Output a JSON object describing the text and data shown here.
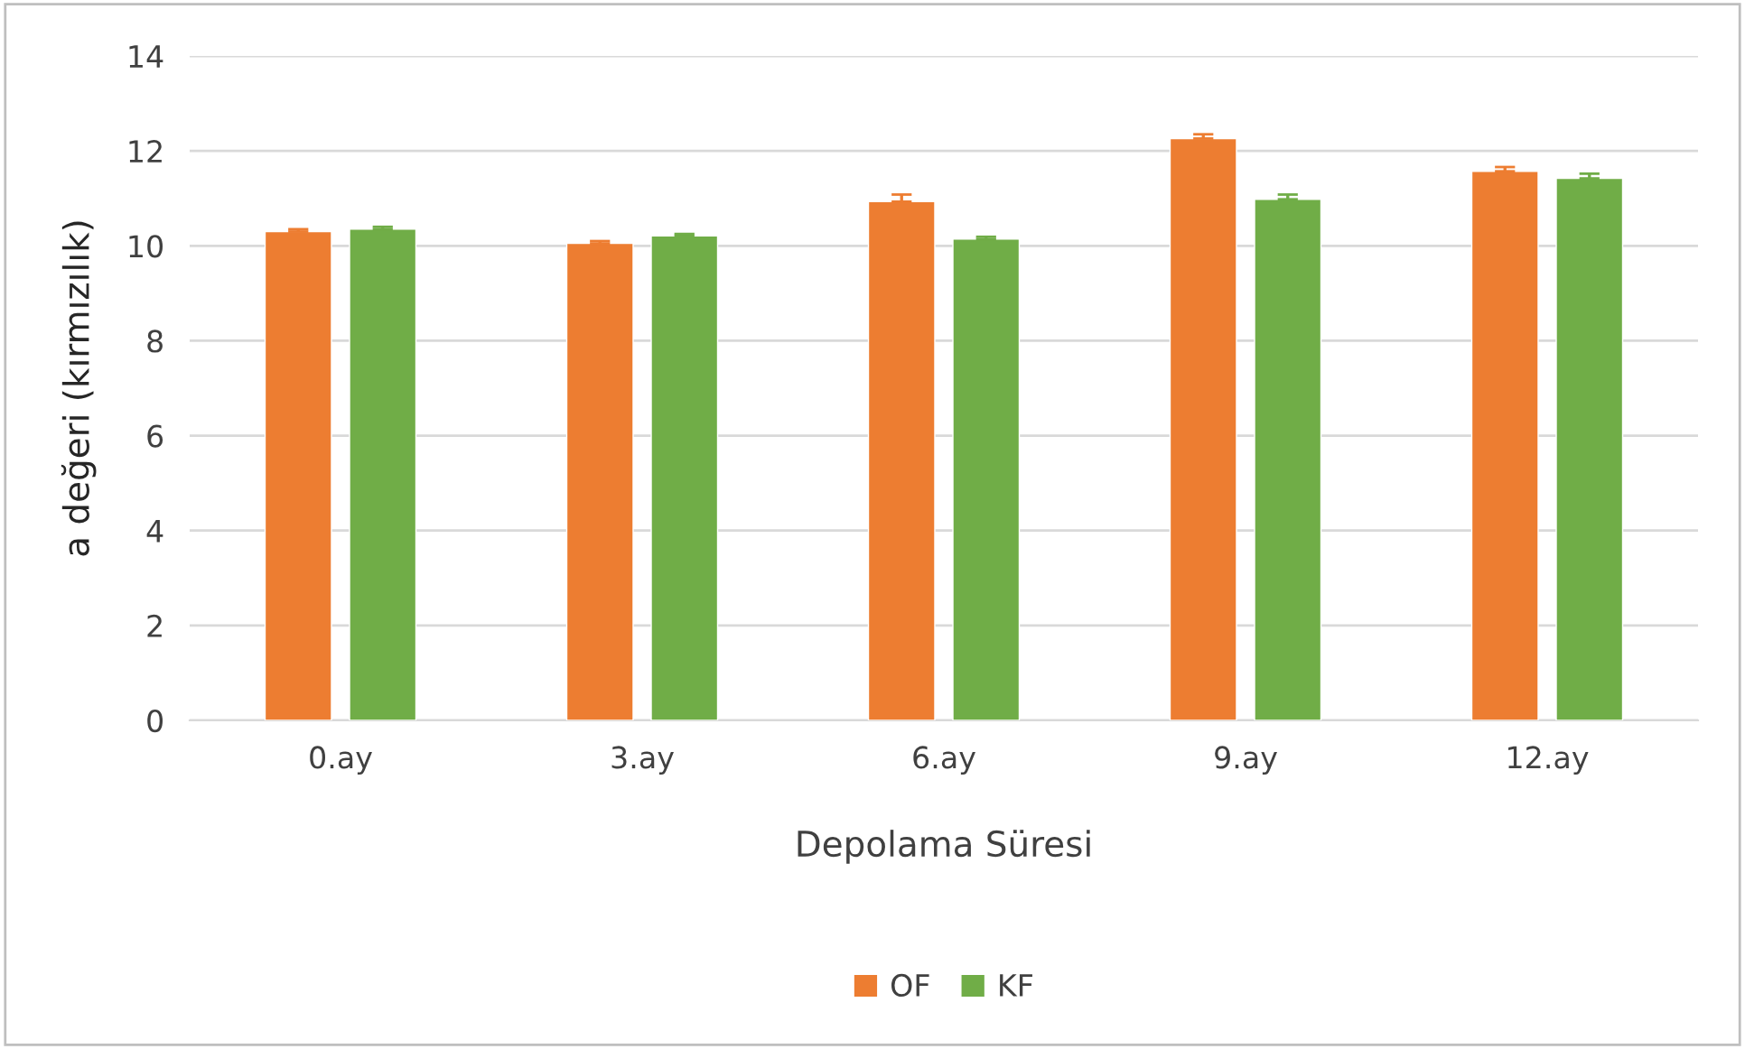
{
  "chart_data": {
    "type": "bar",
    "xlabel": "Depolama Süresi",
    "ylabel": "a değeri (kırmızılık)",
    "categories": [
      "0.ay",
      "3.ay",
      "6.ay",
      "9.ay",
      "12.ay"
    ],
    "series": [
      {
        "name": "OF",
        "color": "#ed7d31",
        "values": [
          10.3,
          10.05,
          10.93,
          12.26,
          11.57
        ],
        "errors": [
          [
            10.3,
            10.35
          ],
          [
            10.05,
            10.1
          ],
          [
            10.93,
            11.08
          ],
          [
            12.26,
            12.35
          ],
          [
            11.57,
            11.66
          ]
        ]
      },
      {
        "name": "KF",
        "color": "#70ad47",
        "values": [
          10.35,
          10.21,
          10.14,
          10.98,
          11.42
        ],
        "errors": [
          [
            10.35,
            10.4
          ],
          [
            10.21,
            10.25
          ],
          [
            10.14,
            10.19
          ],
          [
            10.98,
            11.08
          ],
          [
            11.42,
            11.52
          ]
        ]
      }
    ],
    "ylim": [
      0,
      14
    ],
    "yticks": [
      0,
      2,
      4,
      6,
      8,
      10,
      12,
      14
    ],
    "grid": "y",
    "legend": "bottom"
  }
}
